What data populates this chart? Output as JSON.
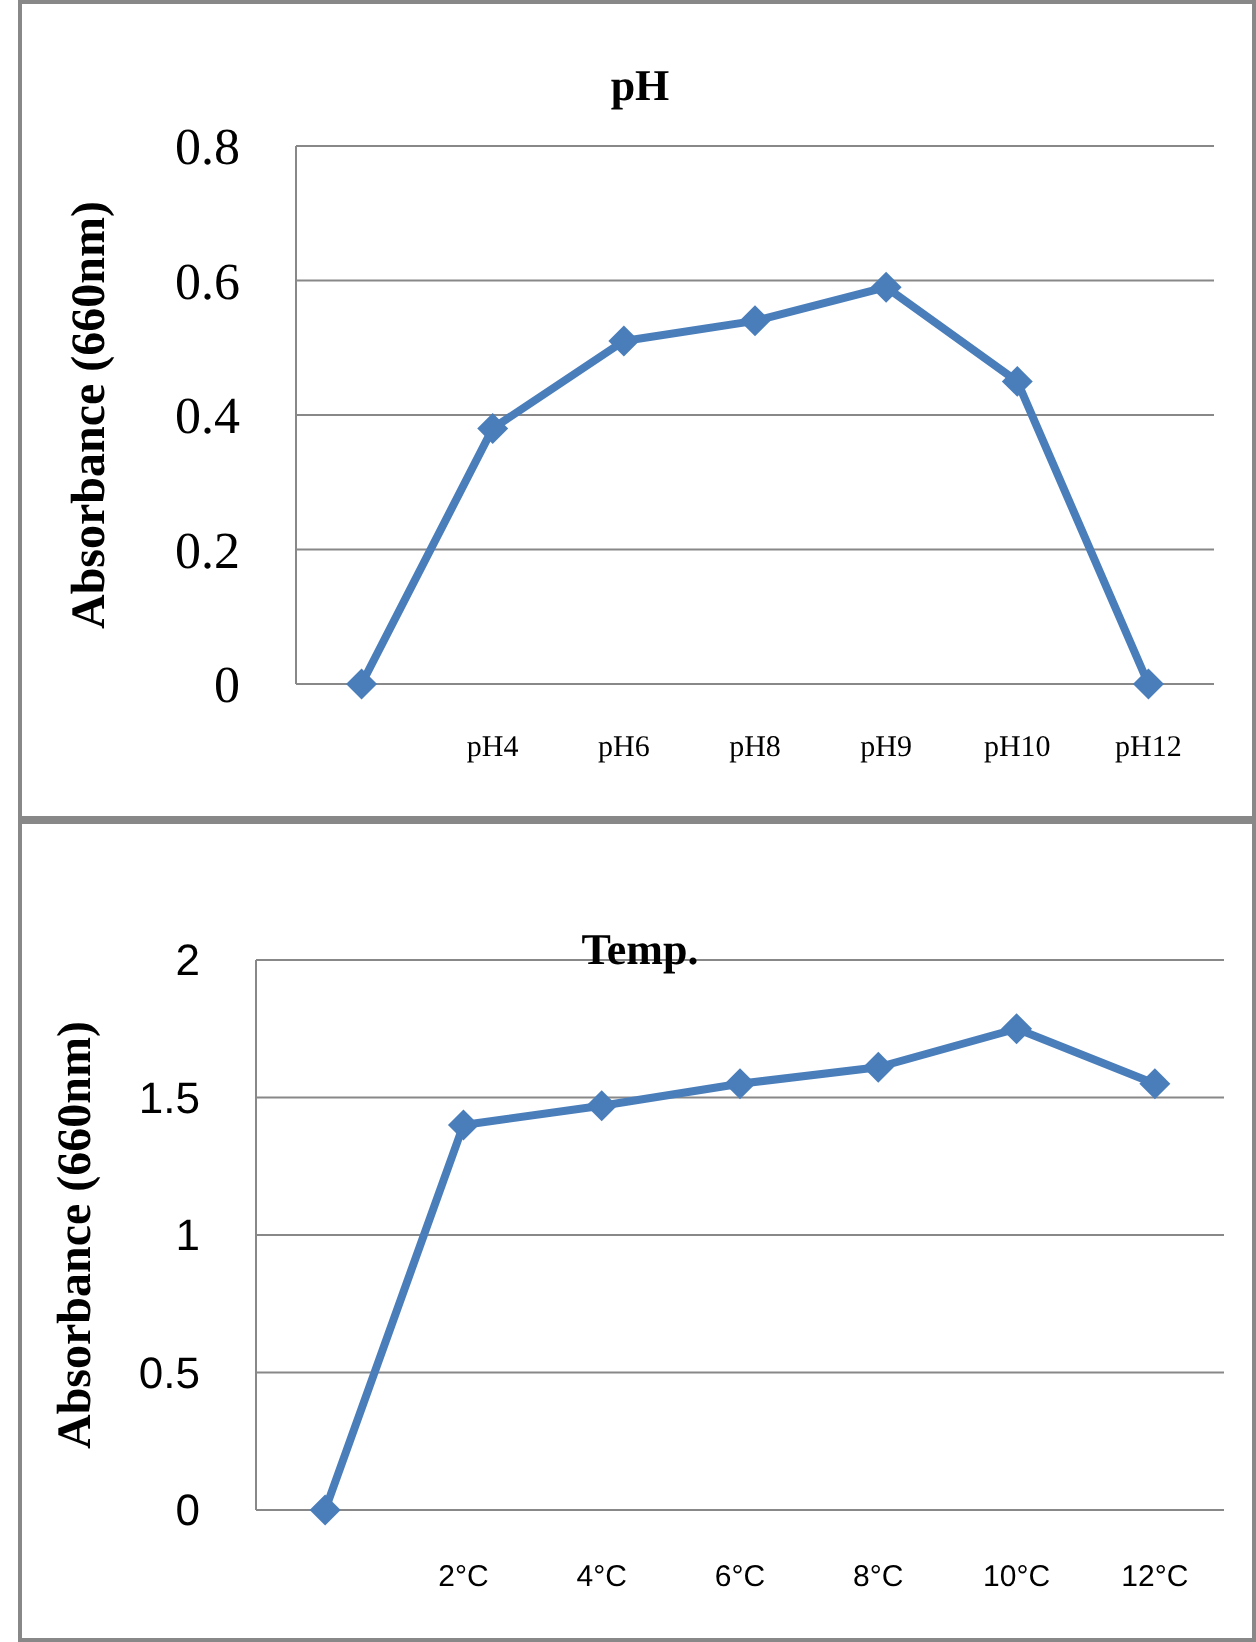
{
  "chart_data": [
    {
      "type": "line",
      "title": "pH",
      "ylabel": "Absorbance (660nm)",
      "categories": [
        null,
        "pH4",
        "pH6",
        "pH8",
        "pH9",
        "pH10",
        "pH12"
      ],
      "series": [
        {
          "color": "#4a7ebb",
          "values": [
            0,
            0.38,
            0.51,
            0.54,
            0.59,
            0.45,
            0
          ]
        }
      ],
      "ylim": [
        0,
        0.8
      ],
      "yticks": [
        0,
        0.2,
        0.4,
        0.6,
        0.8
      ],
      "grid": "y",
      "marker": "diamond",
      "line_style": "solid"
    },
    {
      "type": "line",
      "title": "Temp.",
      "ylabel": "Absorbance (660nm)",
      "categories": [
        null,
        "2°C",
        "4°C",
        "6°C",
        "8°C",
        "10°C",
        "12°C"
      ],
      "series": [
        {
          "color": "#4a7ebb",
          "values": [
            0,
            1.4,
            1.47,
            1.55,
            1.61,
            1.75,
            1.55
          ]
        }
      ],
      "ylim": [
        0,
        2
      ],
      "yticks": [
        0,
        0.5,
        1,
        1.5,
        2
      ],
      "grid": "y",
      "marker": "diamond",
      "line_style": "solid"
    }
  ]
}
